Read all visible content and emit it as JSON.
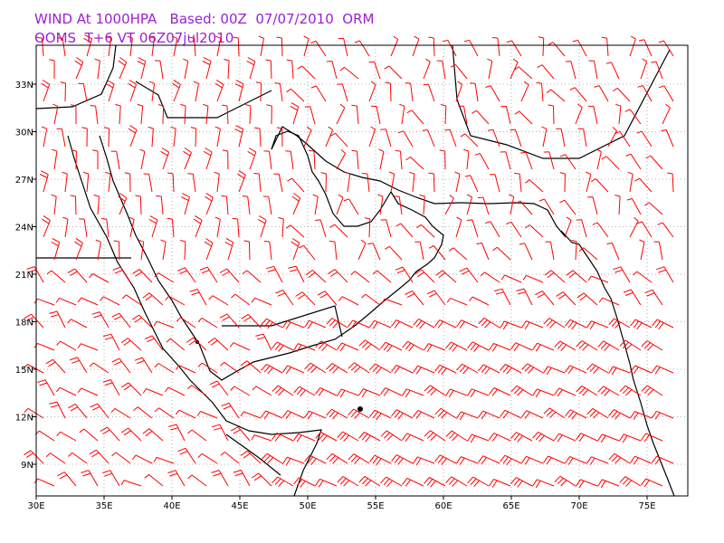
{
  "header": {
    "line1": "WIND At 1000HPA   Based: 00Z  07/07/2010  ORM",
    "line2": "OOMS  T+6 VT 06Z07jul2010"
  },
  "map": {
    "lon_labels": [
      "30E",
      "35E",
      "40E",
      "45E",
      "50E",
      "55E",
      "60E",
      "65E",
      "70E",
      "75E"
    ],
    "lat_labels": [
      "9N",
      "12N",
      "15N",
      "18N",
      "21N",
      "24N",
      "27N",
      "30N",
      "33N"
    ]
  }
}
